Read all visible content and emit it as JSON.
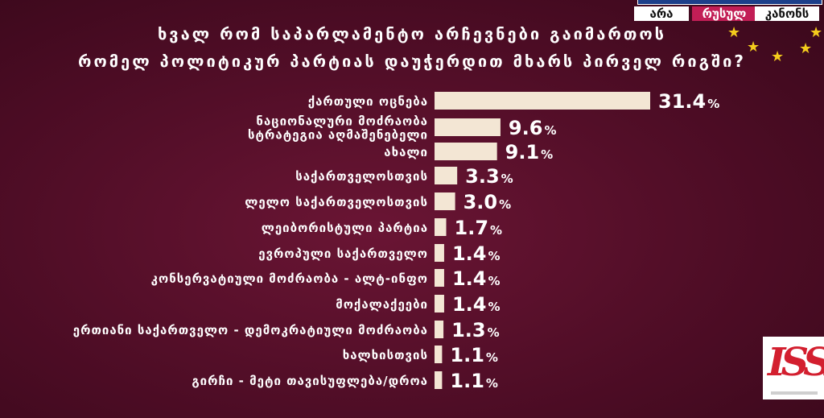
{
  "title_lines": [
    "ხვალ რომ საპარლამენტო არჩევნები გაიმართოს",
    "რომელ პოლიტიკურ პარტიას დაუჭერდით მხარს პირველ რიგში?"
  ],
  "badges": {
    "ara": "არა",
    "rusuli": "რუსულ",
    "kanoni": "კანონს"
  },
  "colors": {
    "background": "#4f0d26",
    "bar": "#f3e6d4",
    "text": "#ffffff",
    "accent": "#c21e56",
    "star": "#f4cc1c"
  },
  "chart_data": {
    "type": "bar",
    "orientation": "horizontal",
    "title": "ხვალ რომ საპარლამენტო არჩევნები გაიმართოს რომელ პოლიტიკურ პარტიას დაუჭერდით მხარს პირველ რიგში?",
    "unit": "%",
    "categories": [
      "ქართული ოცნება",
      "ნაციონალური მოძრაობა სტრატეგია აღმაშენებელი",
      "ახალი",
      "საქართველოსთვის",
      "ლელო საქართველოსთვის",
      "ლეიბორისტული პარტია",
      "ევროპული საქართველო",
      "კონსერვატიული მოძრაობა - ალტ-ინფო",
      "მოქალაქეები",
      "ერთიანი საქართველო - დემოკრატიული მოძრაობა",
      "ხალხისთვის",
      "გირჩი - მეტი თავისუფლება/დროა"
    ],
    "label_lines": [
      [
        "ქართული ოცნება"
      ],
      [
        "ნაციონალური მოძრაობა",
        "სტრატეგია აღმაშენებელი"
      ],
      [
        "ახალი"
      ],
      [
        "საქართველოსთვის"
      ],
      [
        "ლელო საქართველოსთვის"
      ],
      [
        "ლეიბორისტული პარტია"
      ],
      [
        "ევროპული საქართველო"
      ],
      [
        "კონსერვატიული მოძრაობა - ალტ-ინფო"
      ],
      [
        "მოქალაქეები"
      ],
      [
        "ერთიანი საქართველო - დემოკრატიული მოძრაობა"
      ],
      [
        "ხალხისთვის"
      ],
      [
        "გირჩი - მეტი თავისუფლება/დროა"
      ]
    ],
    "values": [
      31.4,
      9.6,
      9.1,
      3.3,
      3.0,
      1.7,
      1.4,
      1.4,
      1.4,
      1.3,
      1.1,
      1.1
    ],
    "value_labels": [
      "31.4",
      "9.6",
      "9.1",
      "3.3",
      "3.0",
      "1.7",
      "1.4",
      "1.4",
      "1.4",
      "1.3",
      "1.1",
      "1.1"
    ],
    "xlim": [
      0,
      31.4
    ],
    "grid": false,
    "legend": "none"
  }
}
